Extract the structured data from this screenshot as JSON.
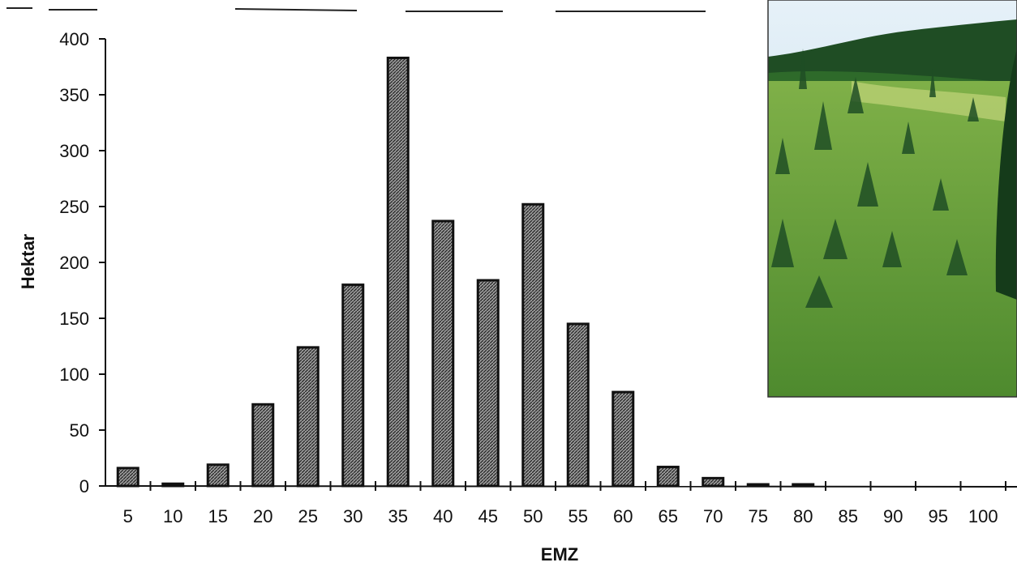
{
  "chart_data": {
    "type": "bar",
    "ylabel": "Hektar",
    "xlabel": "EMZ",
    "categories": [
      "5",
      "10",
      "15",
      "20",
      "25",
      "30",
      "35",
      "40",
      "45",
      "50",
      "55",
      "60",
      "65",
      "70",
      "75",
      "80",
      "85",
      "90",
      "95",
      "100"
    ],
    "values": [
      16,
      2,
      19,
      73,
      124,
      180,
      383,
      237,
      184,
      252,
      145,
      84,
      17,
      7,
      1,
      1,
      0,
      0,
      0,
      0
    ],
    "ylim": [
      0,
      400
    ],
    "yticks": [
      "0",
      "50",
      "100",
      "150",
      "200",
      "250",
      "300",
      "350",
      "400"
    ],
    "grid": false,
    "legend": "none",
    "bar_color": "#555555"
  },
  "photo": {
    "semantic": "forest-landscape-photo",
    "sky_color": "#cfe4f3",
    "forest_color": "#1f4d24",
    "meadow_color": "#6fa13f"
  }
}
